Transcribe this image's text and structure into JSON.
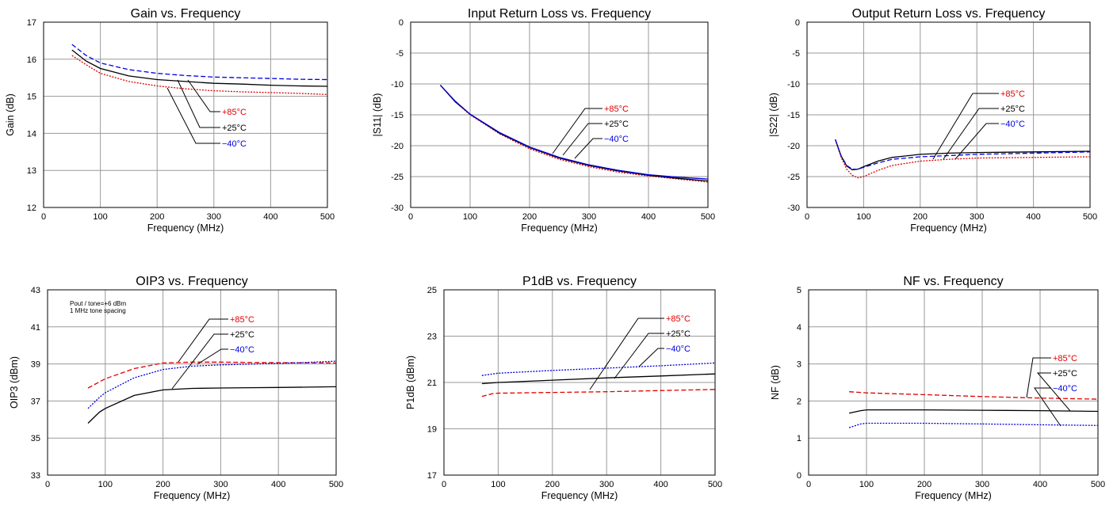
{
  "chart_data": [
    {
      "type": "line",
      "title": "Gain vs. Frequency",
      "xlabel": "Frequency (MHz)",
      "ylabel": "Gain (dB)",
      "xlim": [
        0,
        500
      ],
      "ylim": [
        12,
        17
      ],
      "xticks": [
        0,
        100,
        200,
        300,
        400,
        500
      ],
      "yticks": [
        12,
        13,
        14,
        15,
        16,
        17
      ],
      "grid": true,
      "legend_position": "center-right",
      "note": "",
      "series": [
        {
          "name": "+85°C",
          "color": "#e00000",
          "dash": "dotted",
          "x": [
            50,
            75,
            100,
            150,
            200,
            250,
            300,
            350,
            400,
            450,
            500
          ],
          "y": [
            16.1,
            15.85,
            15.62,
            15.4,
            15.28,
            15.2,
            15.15,
            15.12,
            15.1,
            15.08,
            15.05
          ]
        },
        {
          "name": "+25°C",
          "color": "#000000",
          "dash": "solid",
          "x": [
            50,
            75,
            100,
            150,
            200,
            250,
            300,
            350,
            400,
            450,
            500
          ],
          "y": [
            16.25,
            15.95,
            15.75,
            15.55,
            15.45,
            15.4,
            15.35,
            15.33,
            15.3,
            15.28,
            15.27
          ]
        },
        {
          "name": "−40°C",
          "color": "#0000e0",
          "dash": "dashed",
          "x": [
            50,
            75,
            100,
            150,
            200,
            250,
            300,
            350,
            400,
            450,
            500
          ],
          "y": [
            16.4,
            16.1,
            15.9,
            15.72,
            15.62,
            15.56,
            15.52,
            15.5,
            15.48,
            15.46,
            15.45
          ]
        }
      ]
    },
    {
      "type": "line",
      "title": "Input Return Loss vs. Frequency",
      "xlabel": "Frequency (MHz)",
      "ylabel": "|S11| (dB)",
      "xlim": [
        0,
        500
      ],
      "ylim": [
        -30,
        0
      ],
      "xticks": [
        0,
        100,
        200,
        300,
        400,
        500
      ],
      "yticks": [
        -30,
        -25,
        -20,
        -15,
        -10,
        -5,
        0
      ],
      "grid": true,
      "legend_position": "center-right",
      "note": "",
      "series": [
        {
          "name": "+85°C",
          "color": "#e00000",
          "dash": "dotted",
          "x": [
            50,
            75,
            100,
            150,
            200,
            250,
            300,
            350,
            400,
            450,
            500
          ],
          "y": [
            -10.2,
            -12.9,
            -15.0,
            -18.1,
            -20.5,
            -22.2,
            -23.4,
            -24.3,
            -24.9,
            -25.4,
            -25.9
          ]
        },
        {
          "name": "+25°C",
          "color": "#000000",
          "dash": "solid",
          "x": [
            50,
            75,
            100,
            150,
            200,
            250,
            300,
            350,
            400,
            450,
            500
          ],
          "y": [
            -10.2,
            -12.9,
            -14.9,
            -18.0,
            -20.3,
            -22.0,
            -23.2,
            -24.1,
            -24.8,
            -25.3,
            -25.7
          ]
        },
        {
          "name": "−40°C",
          "color": "#0000e0",
          "dash": "solid",
          "x": [
            50,
            75,
            100,
            150,
            200,
            250,
            300,
            350,
            400,
            450,
            500
          ],
          "y": [
            -10.2,
            -12.8,
            -14.9,
            -17.9,
            -20.2,
            -21.9,
            -23.1,
            -24.0,
            -24.7,
            -25.1,
            -25.4
          ]
        }
      ]
    },
    {
      "type": "line",
      "title": "Output Return Loss vs. Frequency",
      "xlabel": "Frequency (MHz)",
      "ylabel": "|S22| (dB)",
      "xlim": [
        0,
        500
      ],
      "ylim": [
        -30,
        0
      ],
      "xticks": [
        0,
        100,
        200,
        300,
        400,
        500
      ],
      "yticks": [
        -30,
        -25,
        -20,
        -15,
        -10,
        -5,
        0
      ],
      "grid": true,
      "legend_position": "center-right",
      "note": "",
      "series": [
        {
          "name": "+85°C",
          "color": "#e00000",
          "dash": "dotted",
          "x": [
            50,
            60,
            70,
            80,
            90,
            100,
            125,
            150,
            200,
            250,
            300,
            400,
            500
          ],
          "y": [
            -19.0,
            -21.8,
            -23.8,
            -24.8,
            -25.2,
            -25.0,
            -24.0,
            -23.2,
            -22.5,
            -22.2,
            -22.0,
            -21.9,
            -21.8
          ]
        },
        {
          "name": "+25°C",
          "color": "#000000",
          "dash": "solid",
          "x": [
            50,
            60,
            70,
            80,
            90,
            100,
            125,
            150,
            200,
            250,
            300,
            400,
            500
          ],
          "y": [
            -19.0,
            -21.6,
            -23.3,
            -23.9,
            -23.8,
            -23.4,
            -22.5,
            -21.9,
            -21.4,
            -21.2,
            -21.1,
            -21.0,
            -20.9
          ]
        },
        {
          "name": "−40°C",
          "color": "#0000e0",
          "dash": "dashed",
          "x": [
            50,
            60,
            70,
            80,
            90,
            100,
            125,
            150,
            200,
            250,
            300,
            400,
            500
          ],
          "y": [
            -19.0,
            -21.6,
            -23.2,
            -23.8,
            -23.8,
            -23.5,
            -22.8,
            -22.2,
            -21.8,
            -21.6,
            -21.4,
            -21.2,
            -21.0
          ]
        }
      ]
    },
    {
      "type": "line",
      "title": "OIP3 vs. Frequency",
      "xlabel": "Frequency (MHz)",
      "ylabel": "OIP3 (dBm)",
      "xlim": [
        0,
        500
      ],
      "ylim": [
        33,
        43
      ],
      "xticks": [
        0,
        100,
        200,
        300,
        400,
        500
      ],
      "yticks": [
        33,
        35,
        37,
        39,
        41,
        43
      ],
      "grid": true,
      "legend_position": "top-center",
      "note": [
        "Pout / tone=+6 dBm",
        "1 MHz tone spacing"
      ],
      "series": [
        {
          "name": "+85°C",
          "color": "#e00000",
          "dash": "dashed",
          "x": [
            70,
            100,
            150,
            200,
            250,
            300,
            350,
            400,
            450,
            500
          ],
          "y": [
            37.7,
            38.2,
            38.75,
            39.05,
            39.1,
            39.1,
            39.08,
            39.07,
            39.06,
            39.05
          ]
        },
        {
          "name": "+25°C",
          "color": "#000000",
          "dash": "solid",
          "x": [
            70,
            90,
            100,
            150,
            200,
            250,
            300,
            350,
            400,
            450,
            500
          ],
          "y": [
            35.8,
            36.4,
            36.6,
            37.3,
            37.6,
            37.68,
            37.7,
            37.72,
            37.73,
            37.75,
            37.77
          ]
        },
        {
          "name": "−40°C",
          "color": "#0000e0",
          "dash": "dotted",
          "x": [
            70,
            90,
            100,
            150,
            200,
            250,
            300,
            350,
            400,
            450,
            500
          ],
          "y": [
            36.6,
            37.2,
            37.45,
            38.25,
            38.7,
            38.88,
            38.95,
            38.99,
            39.03,
            39.08,
            39.15
          ]
        }
      ]
    },
    {
      "type": "line",
      "title": "P1dB vs. Frequency",
      "xlabel": "Frequency (MHz)",
      "ylabel": "P1dB (dBm)",
      "xlim": [
        0,
        500
      ],
      "ylim": [
        17,
        25
      ],
      "xticks": [
        0,
        100,
        200,
        300,
        400,
        500
      ],
      "yticks": [
        17,
        19,
        21,
        23,
        25
      ],
      "grid": true,
      "legend_position": "top-right",
      "note": "",
      "series": [
        {
          "name": "+85°C",
          "color": "#e00000",
          "dash": "dashed",
          "x": [
            70,
            90,
            100,
            200,
            300,
            400,
            500
          ],
          "y": [
            20.4,
            20.52,
            20.54,
            20.57,
            20.6,
            20.65,
            20.7
          ]
        },
        {
          "name": "+25°C",
          "color": "#000000",
          "dash": "solid",
          "x": [
            70,
            100,
            200,
            300,
            400,
            500
          ],
          "y": [
            20.95,
            21.0,
            21.1,
            21.2,
            21.28,
            21.37
          ]
        },
        {
          "name": "−40°C",
          "color": "#0000e0",
          "dash": "dotted",
          "x": [
            70,
            100,
            200,
            300,
            400,
            500
          ],
          "y": [
            21.3,
            21.4,
            21.52,
            21.62,
            21.72,
            21.84
          ]
        }
      ]
    },
    {
      "type": "line",
      "title": "NF vs. Frequency",
      "xlabel": "Frequency (MHz)",
      "ylabel": "NF (dB)",
      "xlim": [
        0,
        500
      ],
      "ylim": [
        0,
        5
      ],
      "xticks": [
        0,
        100,
        200,
        300,
        400,
        500
      ],
      "yticks": [
        0,
        1,
        2,
        3,
        4,
        5
      ],
      "grid": true,
      "legend_position": "center-right",
      "note": "",
      "series": [
        {
          "name": "+85°C",
          "color": "#e00000",
          "dash": "dashed",
          "x": [
            70,
            100,
            200,
            300,
            400,
            500
          ],
          "y": [
            2.25,
            2.22,
            2.17,
            2.12,
            2.08,
            2.05
          ]
        },
        {
          "name": "+25°C",
          "color": "#000000",
          "dash": "solid",
          "x": [
            70,
            90,
            100,
            200,
            300,
            400,
            500
          ],
          "y": [
            1.67,
            1.74,
            1.76,
            1.76,
            1.75,
            1.74,
            1.72
          ]
        },
        {
          "name": "−40°C",
          "color": "#0000e0",
          "dash": "dotted",
          "x": [
            70,
            90,
            100,
            200,
            300,
            400,
            500
          ],
          "y": [
            1.28,
            1.38,
            1.4,
            1.4,
            1.38,
            1.36,
            1.34
          ]
        }
      ]
    }
  ]
}
